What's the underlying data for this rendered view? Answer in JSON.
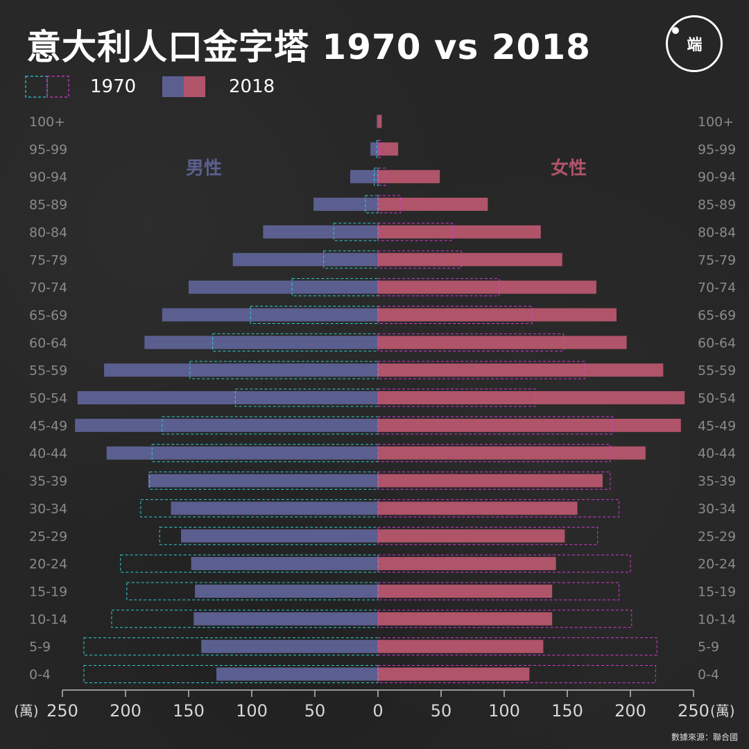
{
  "title": "意大利人口金字塔 1970 vs 2018",
  "logo": {
    "text": "端"
  },
  "legend": [
    {
      "label": "1970",
      "style": "dashed-outline"
    },
    {
      "label": "2018",
      "style": "filled"
    }
  ],
  "labels": {
    "male": "男性",
    "female": "女性"
  },
  "source": "數據來源：聯合國",
  "colors": {
    "background": "#262626",
    "male_2018": "#5b5f8f",
    "female_2018": "#b05469",
    "male_1970_outline": "#2fd0d8",
    "female_1970_outline": "#d63bd6",
    "male_text": "#5b5f8f",
    "female_text": "#b05469"
  },
  "chart_data": {
    "type": "bar",
    "orientation": "horizontal",
    "layout": "population-pyramid",
    "categories": [
      "100+",
      "95-99",
      "90-94",
      "85-89",
      "80-84",
      "75-79",
      "70-74",
      "65-69",
      "60-64",
      "55-59",
      "50-54",
      "45-49",
      "40-44",
      "35-39",
      "30-34",
      "25-29",
      "20-24",
      "15-19",
      "10-14",
      "5-9",
      "0-4"
    ],
    "series": [
      {
        "name": "男性 2018",
        "side": "left",
        "values": [
          1,
          6,
          22,
          51,
          91,
          115,
          150,
          171,
          185,
          217,
          238,
          240,
          215,
          182,
          164,
          156,
          148,
          145,
          146,
          140,
          128
        ]
      },
      {
        "name": "女性 2018",
        "side": "right",
        "values": [
          3,
          16,
          49,
          87,
          129,
          146,
          173,
          189,
          197,
          226,
          243,
          240,
          212,
          178,
          158,
          148,
          141,
          138,
          138,
          131,
          120
        ]
      },
      {
        "name": "男性 1970",
        "side": "left",
        "values": [
          0,
          1,
          3,
          10,
          35,
          43,
          68,
          101,
          131,
          149,
          113,
          171,
          179,
          181,
          188,
          173,
          204,
          199,
          211,
          233,
          233
        ]
      },
      {
        "name": "女性 1970",
        "side": "right",
        "values": [
          0,
          2,
          6,
          18,
          59,
          66,
          96,
          122,
          147,
          164,
          125,
          186,
          184,
          184,
          191,
          174,
          200,
          191,
          201,
          221,
          220
        ]
      }
    ],
    "xlabel_unit": "(萬)",
    "x_ticks": [
      "250",
      "200",
      "150",
      "100",
      "50",
      "0",
      "50",
      "100",
      "150",
      "200",
      "250"
    ],
    "xlim": [
      0,
      250
    ],
    "grid": false
  }
}
